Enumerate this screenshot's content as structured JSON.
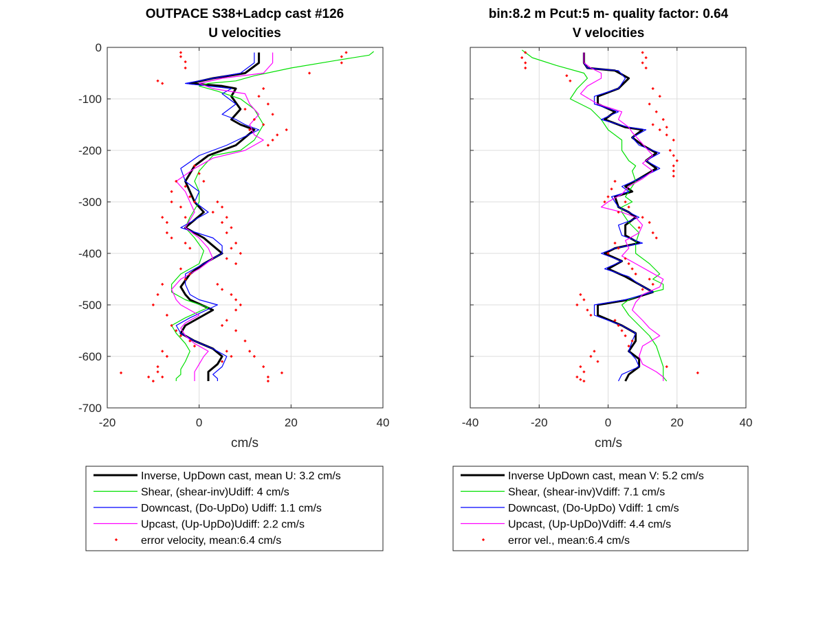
{
  "chart_data": [
    {
      "type": "line",
      "title": "OUTPACE S38+Ladcp cast #126",
      "subtitle": "U velocities",
      "xlabel": "cm/s",
      "ylabel": "",
      "xlim": [
        -20,
        40
      ],
      "ylim": [
        -700,
        0
      ],
      "xticks": [
        "-20",
        "0",
        "20",
        "40"
      ],
      "yticks": [
        "0",
        "-100",
        "-200",
        "-300",
        "-400",
        "-500",
        "-600",
        "-700"
      ],
      "grid": true,
      "legend_position": "below",
      "series": [
        {
          "name": "Inverse, UpDown cast, mean U:  3.2 cm/s",
          "color": "#000000",
          "style": "thick-line",
          "x": [
            13,
            13,
            10,
            3,
            -2,
            5,
            8,
            7,
            9,
            7,
            9,
            12,
            8,
            2,
            -1,
            -3,
            -2,
            -1,
            1,
            -3,
            1,
            3,
            5,
            1,
            -2,
            -4,
            -3,
            -2,
            3,
            -1,
            -3,
            -4,
            -1,
            3,
            5,
            4,
            2,
            2,
            2
          ],
          "y": [
            -10,
            -30,
            -50,
            -60,
            -70,
            -75,
            -80,
            -95,
            -120,
            -140,
            -150,
            -160,
            -190,
            -210,
            -230,
            -260,
            -280,
            -300,
            -320,
            -350,
            -370,
            -385,
            -400,
            -420,
            -440,
            -465,
            -480,
            -490,
            -510,
            -530,
            -540,
            -555,
            -570,
            -585,
            -600,
            -615,
            -630,
            -640,
            -648
          ]
        },
        {
          "name": "Shear, (shear-inv)Udiff:  4 cm/s",
          "color": "#00e000",
          "style": "line",
          "x": [
            38,
            37,
            30,
            20,
            12,
            8,
            2,
            0,
            4,
            9,
            12,
            14,
            12,
            9,
            3,
            0,
            -1,
            0,
            0,
            -2,
            -3,
            -1,
            1,
            0,
            -4,
            -6,
            -6,
            -3,
            2,
            -3,
            -6,
            -5,
            -3,
            -2,
            -3,
            -4,
            -4,
            -5,
            -5
          ],
          "y": [
            -8,
            -15,
            -25,
            -40,
            -55,
            -65,
            -70,
            -75,
            -85,
            -100,
            -120,
            -150,
            -180,
            -200,
            -210,
            -240,
            -260,
            -280,
            -300,
            -330,
            -350,
            -370,
            -395,
            -420,
            -440,
            -460,
            -475,
            -490,
            -505,
            -525,
            -540,
            -555,
            -575,
            -590,
            -610,
            -625,
            -635,
            -643,
            -648
          ]
        },
        {
          "name": "Downcast, (Do-UpDo) Udiff:  1.1 cm/s",
          "color": "#0000ff",
          "style": "line",
          "x": [
            12,
            12,
            9,
            3,
            -3,
            7,
            5,
            8,
            5,
            8,
            10,
            13,
            6,
            0,
            -4,
            -3,
            0,
            -1,
            2,
            -4,
            3,
            5,
            5,
            1,
            -3,
            -3,
            -2,
            0,
            4,
            -2,
            -5,
            -4,
            -1,
            3,
            6,
            5,
            3,
            4,
            4
          ],
          "y": [
            -10,
            -30,
            -50,
            -60,
            -70,
            -80,
            -90,
            -110,
            -130,
            -140,
            -150,
            -160,
            -190,
            -210,
            -235,
            -260,
            -280,
            -300,
            -320,
            -350,
            -370,
            -385,
            -400,
            -420,
            -440,
            -460,
            -480,
            -490,
            -500,
            -525,
            -540,
            -555,
            -570,
            -585,
            -600,
            -620,
            -635,
            -643,
            -648
          ]
        },
        {
          "name": "Upcast, (Up-UpDo)Udiff:  2.2 cm/s",
          "color": "#ff00ff",
          "style": "line",
          "x": [
            16,
            16,
            14,
            5,
            0,
            3,
            10,
            11,
            13,
            11,
            12,
            14,
            10,
            3,
            -1,
            -5,
            -3,
            -2,
            -1,
            -3,
            0,
            2,
            3,
            0,
            -4,
            -6,
            -5,
            -4,
            0,
            -3,
            -4,
            -3,
            -1,
            2,
            1,
            0,
            -1,
            -1,
            -1
          ],
          "y": [
            -10,
            -30,
            -50,
            -60,
            -70,
            -80,
            -90,
            -110,
            -130,
            -150,
            -170,
            -180,
            -200,
            -215,
            -235,
            -260,
            -280,
            -300,
            -320,
            -350,
            -370,
            -390,
            -410,
            -430,
            -450,
            -470,
            -490,
            -500,
            -520,
            -535,
            -545,
            -560,
            -575,
            -590,
            -600,
            -615,
            -630,
            -640,
            -648
          ]
        },
        {
          "name": "error velocity, mean:6.4 cm/s",
          "color": "#ff0000",
          "style": "dots",
          "x": [
            -4,
            -4,
            -3,
            -3,
            32,
            31,
            31,
            24,
            -8,
            -9,
            14,
            13,
            15,
            16,
            10,
            12,
            11,
            14,
            17,
            19,
            16,
            15,
            -1,
            0,
            1,
            -3,
            -2,
            -1,
            -5,
            -6,
            -6,
            -4,
            -3,
            4,
            5,
            3,
            6,
            5,
            7,
            6,
            -8,
            -7,
            -7,
            -6,
            -3,
            -2,
            8,
            7,
            9,
            6,
            8,
            -4,
            -2,
            -3,
            4,
            5,
            7,
            8,
            9,
            8,
            -8,
            -9,
            -10,
            -7,
            -6,
            -5,
            -4,
            -2,
            -1,
            6,
            7,
            5,
            -8,
            -7,
            -9,
            6,
            5,
            8,
            10,
            11,
            12,
            14,
            -9,
            -8,
            -10,
            -11,
            -17,
            15,
            18,
            15
          ],
          "y": [
            -10,
            -18,
            -28,
            -40,
            -10,
            -18,
            -30,
            -50,
            -70,
            -65,
            -80,
            -95,
            -110,
            -130,
            -120,
            -140,
            -160,
            -150,
            -170,
            -160,
            -180,
            -190,
            -230,
            -245,
            -260,
            -270,
            -290,
            -300,
            -260,
            -280,
            -300,
            -310,
            -330,
            -300,
            -310,
            -320,
            -330,
            -340,
            -350,
            -360,
            -330,
            -340,
            -360,
            -370,
            -380,
            -390,
            -380,
            -390,
            -400,
            -410,
            -420,
            -430,
            -440,
            -450,
            -460,
            -470,
            -480,
            -490,
            -500,
            -510,
            -460,
            -480,
            -500,
            -520,
            -540,
            -550,
            -560,
            -570,
            -580,
            -590,
            -600,
            -610,
            -590,
            -600,
            -620,
            -530,
            -540,
            -550,
            -570,
            -590,
            -600,
            -620,
            -630,
            -640,
            -648,
            -640,
            -632,
            -640,
            -632,
            -648
          ]
        }
      ]
    },
    {
      "type": "line",
      "title": "bin:8.2 m  Pcut:5 m- quality factor:  0.64",
      "subtitle": "V velocities",
      "xlabel": "cm/s",
      "ylabel": "",
      "xlim": [
        -40,
        40
      ],
      "ylim": [
        -700,
        0
      ],
      "xticks": [
        "-40",
        "-20",
        "0",
        "20",
        "40"
      ],
      "yticks": [],
      "grid": true,
      "legend_position": "below",
      "series": [
        {
          "name": "Inverse UpDown cast, mean V:  5.2 cm/s",
          "color": "#000000",
          "style": "thick-line",
          "x": [
            -7,
            -7,
            -6,
            2,
            6,
            3,
            -3,
            -3,
            2,
            -1,
            5,
            10,
            7,
            10,
            14,
            11,
            14,
            9,
            5,
            7,
            2,
            3,
            6,
            8,
            5,
            5,
            9,
            2,
            -1,
            4,
            0,
            5,
            9,
            13,
            6,
            -3,
            -3,
            4,
            8,
            8,
            6,
            9,
            9,
            6,
            5
          ],
          "y": [
            -10,
            -30,
            -40,
            -45,
            -60,
            -80,
            -95,
            -110,
            -125,
            -140,
            -155,
            -160,
            -175,
            -190,
            -205,
            -220,
            -235,
            -255,
            -270,
            -280,
            -290,
            -310,
            -320,
            -330,
            -345,
            -365,
            -380,
            -390,
            -400,
            -415,
            -430,
            -445,
            -460,
            -475,
            -490,
            -500,
            -520,
            -540,
            -555,
            -570,
            -590,
            -605,
            -620,
            -635,
            -648
          ]
        },
        {
          "name": "Shear, (shear-inv)Vdiff:  7.1 cm/s",
          "color": "#00e000",
          "style": "line",
          "x": [
            -25,
            -22,
            -15,
            -7,
            -6,
            -9,
            -11,
            -5,
            -2,
            0,
            4,
            4,
            5,
            6,
            8,
            7,
            8,
            6,
            5,
            7,
            4,
            4,
            6,
            9,
            8,
            8,
            12,
            15,
            13,
            16,
            16,
            10,
            6,
            4,
            6,
            9,
            12,
            14,
            15,
            16,
            16,
            16,
            17
          ],
          "y": [
            -5,
            -20,
            -35,
            -50,
            -60,
            -80,
            -100,
            -120,
            -140,
            -160,
            -180,
            -200,
            -210,
            -220,
            -230,
            -240,
            -260,
            -280,
            -290,
            -300,
            -310,
            -320,
            -340,
            -360,
            -380,
            -400,
            -420,
            -440,
            -450,
            -460,
            -470,
            -480,
            -490,
            -500,
            -520,
            -540,
            -560,
            -580,
            -600,
            -620,
            -630,
            -640,
            -648
          ]
        },
        {
          "name": "Downcast, (Do-UpDo) Vdiff:  1 cm/s",
          "color": "#0000ff",
          "style": "line",
          "x": [
            -7,
            -7,
            -6,
            3,
            5,
            3,
            -4,
            -4,
            3,
            -2,
            6,
            11,
            7,
            9,
            15,
            11,
            15,
            9,
            4,
            6,
            1,
            3,
            6,
            9,
            3,
            4,
            10,
            2,
            -2,
            4,
            -1,
            6,
            9,
            13,
            5,
            -4,
            -4,
            4,
            8,
            7,
            6,
            8,
            9,
            4,
            3
          ],
          "y": [
            -10,
            -30,
            -40,
            -45,
            -60,
            -80,
            -95,
            -110,
            -125,
            -140,
            -155,
            -160,
            -175,
            -190,
            -205,
            -220,
            -235,
            -255,
            -270,
            -280,
            -290,
            -310,
            -320,
            -330,
            -345,
            -365,
            -380,
            -390,
            -400,
            -415,
            -430,
            -445,
            -460,
            -475,
            -490,
            -500,
            -520,
            -540,
            -555,
            -570,
            -590,
            -605,
            -620,
            -635,
            -648
          ]
        },
        {
          "name": "Upcast, (Up-UpDo)Vdiff:  4.4 cm/s",
          "color": "#ff00ff",
          "style": "line",
          "x": [
            -7,
            -7,
            -5,
            -2,
            -2,
            -6,
            -8,
            -3,
            4,
            3,
            6,
            7,
            9,
            11,
            13,
            10,
            13,
            10,
            6,
            4,
            0,
            -2,
            4,
            8,
            10,
            9,
            5,
            6,
            4,
            8,
            12,
            16,
            15,
            10,
            8,
            7,
            10,
            12,
            15,
            10,
            9,
            10,
            14,
            16,
            16
          ],
          "y": [
            -10,
            -30,
            -40,
            -50,
            -60,
            -75,
            -90,
            -110,
            -125,
            -140,
            -155,
            -165,
            -180,
            -195,
            -210,
            -225,
            -240,
            -255,
            -270,
            -285,
            -300,
            -310,
            -320,
            -330,
            -345,
            -360,
            -375,
            -390,
            -405,
            -420,
            -435,
            -450,
            -465,
            -480,
            -495,
            -510,
            -530,
            -545,
            -560,
            -580,
            -600,
            -615,
            -630,
            -640,
            -648
          ]
        },
        {
          "name": "error vel., mean:6.4 cm/s",
          "color": "#ff0000",
          "style": "dots",
          "x": [
            -24,
            -25,
            -24,
            -24,
            10,
            11,
            10,
            11,
            -12,
            -11,
            13,
            15,
            12,
            14,
            16,
            17,
            13,
            15,
            17,
            19,
            18,
            19,
            20,
            19,
            19,
            19,
            2,
            1,
            0,
            -1,
            5,
            6,
            3,
            10,
            12,
            9,
            13,
            14,
            2,
            3,
            0,
            5,
            6,
            7,
            8,
            12,
            13,
            10,
            -8,
            -7,
            -9,
            -6,
            -5,
            2,
            3,
            4,
            5,
            7,
            6,
            -4,
            -5,
            -3,
            -8,
            -7,
            -9,
            17,
            26,
            -8,
            -7
          ],
          "y": [
            -10,
            -20,
            -30,
            -40,
            -10,
            -20,
            -30,
            -40,
            -55,
            -65,
            -80,
            -95,
            -110,
            -125,
            -140,
            -155,
            -150,
            -160,
            -170,
            -180,
            -200,
            -210,
            -220,
            -230,
            -240,
            -250,
            -260,
            -275,
            -290,
            -300,
            -300,
            -310,
            -320,
            -330,
            -340,
            -350,
            -360,
            -370,
            -380,
            -390,
            -400,
            -410,
            -420,
            -430,
            -440,
            -450,
            -460,
            -470,
            -480,
            -490,
            -500,
            -510,
            -520,
            -530,
            -540,
            -550,
            -560,
            -570,
            -580,
            -590,
            -600,
            -610,
            -620,
            -630,
            -640,
            -620,
            -632,
            -645,
            -648
          ]
        }
      ]
    }
  ]
}
